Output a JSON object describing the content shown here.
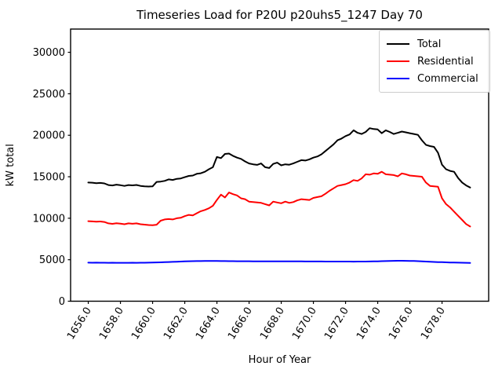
{
  "window": {
    "title": "Timeseries Load for P20U p20uhs5_1247  Day 70"
  },
  "chart_data": {
    "type": "line",
    "title": "Timeseries Load for P20U p20uhs5_1247  Day 70",
    "xlabel": "Hour of Year",
    "ylabel": "kW total",
    "xlim": [
      1654.9,
      1680.9
    ],
    "ylim": [
      0,
      32800
    ],
    "xticks": [
      1656,
      1658,
      1660,
      1662,
      1664,
      1666,
      1668,
      1670,
      1672,
      1674,
      1676,
      1678
    ],
    "xtick_labels": [
      "1656.0",
      "1658.0",
      "1660.0",
      "1662.0",
      "1664.0",
      "1666.0",
      "1668.0",
      "1670.0",
      "1672.0",
      "1674.0",
      "1676.0",
      "1678.0"
    ],
    "yticks": [
      0,
      5000,
      10000,
      15000,
      20000,
      25000,
      30000
    ],
    "ytick_labels": [
      "0",
      "5000",
      "10000",
      "15000",
      "20000",
      "25000",
      "30000"
    ],
    "grid": false,
    "legend_position": "upper right",
    "x_step_hours": 0.25,
    "x": [
      1656.0,
      1656.25,
      1656.5,
      1656.75,
      1657.0,
      1657.25,
      1657.5,
      1657.75,
      1658.0,
      1658.25,
      1658.5,
      1658.75,
      1659.0,
      1659.25,
      1659.5,
      1659.75,
      1660.0,
      1660.25,
      1660.5,
      1660.75,
      1661.0,
      1661.25,
      1661.5,
      1661.75,
      1662.0,
      1662.25,
      1662.5,
      1662.75,
      1663.0,
      1663.25,
      1663.5,
      1663.75,
      1664.0,
      1664.25,
      1664.5,
      1664.75,
      1665.0,
      1665.25,
      1665.5,
      1665.75,
      1666.0,
      1666.25,
      1666.5,
      1666.75,
      1667.0,
      1667.25,
      1667.5,
      1667.75,
      1668.0,
      1668.25,
      1668.5,
      1668.75,
      1669.0,
      1669.25,
      1669.5,
      1669.75,
      1670.0,
      1670.25,
      1670.5,
      1670.75,
      1671.0,
      1671.25,
      1671.5,
      1671.75,
      1672.0,
      1672.25,
      1672.5,
      1672.75,
      1673.0,
      1673.25,
      1673.5,
      1673.75,
      1674.0,
      1674.25,
      1674.5,
      1674.75,
      1675.0,
      1675.25,
      1675.5,
      1675.75,
      1676.0,
      1676.25,
      1676.5,
      1676.75,
      1677.0,
      1677.25,
      1677.5,
      1677.75,
      1678.0,
      1678.25,
      1678.5,
      1678.75,
      1679.0,
      1679.25,
      1679.5,
      1679.75
    ],
    "series": [
      {
        "name": "Total",
        "color": "#000000",
        "values": [
          14300,
          14280,
          14230,
          14260,
          14200,
          14000,
          13950,
          14050,
          13980,
          13900,
          14000,
          13960,
          14010,
          13900,
          13850,
          13820,
          13840,
          14380,
          14420,
          14500,
          14680,
          14620,
          14750,
          14800,
          14950,
          15100,
          15150,
          15350,
          15420,
          15600,
          15900,
          16150,
          17380,
          17250,
          17750,
          17800,
          17520,
          17300,
          17150,
          16850,
          16600,
          16500,
          16430,
          16600,
          16150,
          16050,
          16550,
          16700,
          16380,
          16500,
          16450,
          16600,
          16800,
          17000,
          16950,
          17100,
          17300,
          17450,
          17700,
          18100,
          18500,
          18900,
          19400,
          19600,
          19900,
          20100,
          20600,
          20300,
          20150,
          20400,
          20850,
          20750,
          20700,
          20250,
          20600,
          20400,
          20150,
          20300,
          20450,
          20350,
          20250,
          20150,
          20050,
          19400,
          18850,
          18700,
          18600,
          17900,
          16450,
          15900,
          15700,
          15600,
          14850,
          14300,
          13950,
          13700
        ]
      },
      {
        "name": "Residential",
        "color": "#ff0000",
        "values": [
          9650,
          9620,
          9580,
          9610,
          9550,
          9380,
          9320,
          9400,
          9350,
          9280,
          9380,
          9330,
          9380,
          9280,
          9230,
          9180,
          9150,
          9220,
          9700,
          9850,
          9900,
          9850,
          10000,
          10050,
          10250,
          10400,
          10350,
          10600,
          10850,
          11000,
          11200,
          11500,
          12200,
          12850,
          12500,
          13100,
          12900,
          12750,
          12400,
          12300,
          12000,
          11950,
          11900,
          11850,
          11700,
          11550,
          12000,
          11900,
          11800,
          12000,
          11850,
          11950,
          12150,
          12300,
          12250,
          12200,
          12450,
          12550,
          12650,
          12950,
          13300,
          13600,
          13900,
          14000,
          14100,
          14300,
          14600,
          14500,
          14800,
          15300,
          15250,
          15400,
          15350,
          15600,
          15300,
          15250,
          15200,
          15050,
          15400,
          15300,
          15150,
          15100,
          15050,
          15000,
          14300,
          13900,
          13850,
          13800,
          12400,
          11700,
          11300,
          10800,
          10300,
          9800,
          9300,
          9000
        ]
      },
      {
        "name": "Commercial",
        "color": "#0000ff",
        "values": [
          4650,
          4640,
          4645,
          4635,
          4640,
          4630,
          4635,
          4628,
          4632,
          4625,
          4630,
          4635,
          4630,
          4638,
          4642,
          4650,
          4660,
          4675,
          4690,
          4705,
          4720,
          4740,
          4760,
          4780,
          4800,
          4815,
          4825,
          4835,
          4840,
          4848,
          4852,
          4850,
          4845,
          4840,
          4835,
          4830,
          4825,
          4822,
          4820,
          4818,
          4815,
          4812,
          4810,
          4810,
          4808,
          4805,
          4805,
          4802,
          4800,
          4800,
          4798,
          4798,
          4795,
          4795,
          4792,
          4792,
          4790,
          4790,
          4788,
          4785,
          4785,
          4782,
          4780,
          4780,
          4778,
          4778,
          4775,
          4778,
          4780,
          4785,
          4790,
          4800,
          4810,
          4825,
          4840,
          4855,
          4865,
          4872,
          4875,
          4870,
          4860,
          4845,
          4825,
          4805,
          4785,
          4760,
          4735,
          4715,
          4700,
          4685,
          4670,
          4660,
          4650,
          4640,
          4630,
          4610
        ]
      }
    ]
  }
}
